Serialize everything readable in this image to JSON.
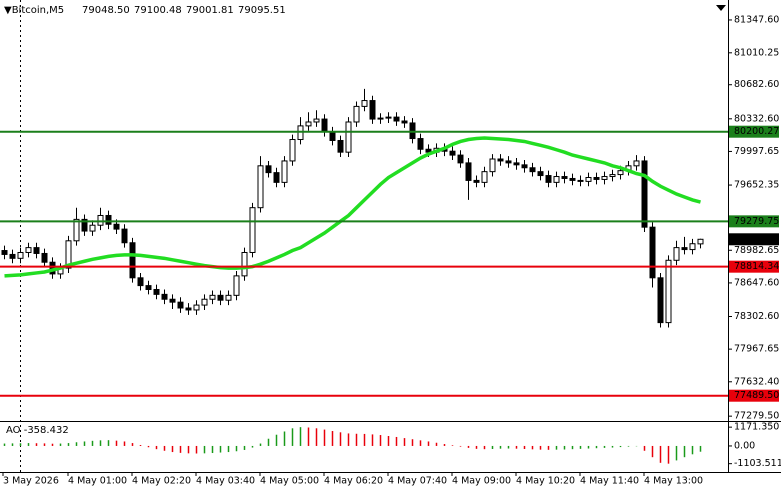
{
  "chart_data": {
    "type": "candlestick",
    "header": {
      "symbol": "▼Bitcoin,M5",
      "ohlc": [
        "79048.50",
        "79100.48",
        "79001.81",
        "79095.51"
      ]
    },
    "ylim": [
      77240,
      81532
    ],
    "yticks": [
      {
        "value": 81347.6,
        "label": "81347.60"
      },
      {
        "value": 81010.25,
        "label": "81010.25"
      },
      {
        "value": 80682.6,
        "label": "80682.60"
      },
      {
        "value": 80332.6,
        "label": "80332.60"
      },
      79997.65,
      79652.35,
      78982.65,
      {
        "value": 78647.6,
        "label": "78647.60"
      },
      {
        "value": 78302.6,
        "label": "78302.60"
      },
      77967.65,
      {
        "value": 77632.4,
        "label": "77632.40"
      },
      {
        "value": 77279.5,
        "label": "77279.50"
      }
    ],
    "xlabels": [
      "3 May 2026",
      "4 May 01:00",
      "4 May 02:20",
      "4 May 03:40",
      "4 May 05:00",
      "4 May 06:20",
      "4 May 07:40",
      "4 May 09:00",
      "4 May 10:20",
      "4 May 11:40",
      "4 May 13:00"
    ],
    "levels": [
      {
        "value": 80200.27,
        "color": "#1a7f1a"
      },
      {
        "value": 79279.75,
        "color": "#1a7f1a"
      },
      {
        "value": 78814.34,
        "color": "#e8000b"
      },
      {
        "value": 77489.5,
        "label": "77489.50",
        "color": "#e8000b"
      }
    ],
    "ma_color": "#22dd22",
    "candles": [
      [
        78980,
        79030,
        78890,
        78940
      ],
      [
        78940,
        78990,
        78850,
        78900
      ],
      [
        78900,
        79010,
        78850,
        78960
      ],
      [
        78960,
        79060,
        78910,
        79010
      ],
      [
        79010,
        79060,
        78900,
        78950
      ],
      [
        78950,
        79000,
        78810,
        78860
      ],
      [
        78860,
        78910,
        78690,
        78740
      ],
      [
        78740,
        78850,
        78690,
        78800
      ],
      [
        78800,
        79130,
        78750,
        79080
      ],
      [
        79080,
        79420,
        79030,
        79300
      ],
      [
        79300,
        79350,
        79130,
        79180
      ],
      [
        79180,
        79290,
        79130,
        79240
      ],
      [
        79240,
        79420,
        79190,
        79340
      ],
      [
        79340,
        79390,
        79200,
        79250
      ],
      [
        79250,
        79300,
        79150,
        79200
      ],
      [
        79200,
        79250,
        79010,
        79060
      ],
      [
        79060,
        79110,
        78650,
        78700
      ],
      [
        78700,
        78750,
        78570,
        78620
      ],
      [
        78620,
        78670,
        78530,
        78580
      ],
      [
        78580,
        78630,
        78480,
        78530
      ],
      [
        78530,
        78580,
        78430,
        78480
      ],
      [
        78480,
        78530,
        78380,
        78450
      ],
      [
        78450,
        78500,
        78340,
        78390
      ],
      [
        78390,
        78440,
        78320,
        78370
      ],
      [
        78370,
        78470,
        78320,
        78420
      ],
      [
        78420,
        78530,
        78370,
        78480
      ],
      [
        78480,
        78570,
        78430,
        78520
      ],
      [
        78520,
        78570,
        78420,
        78470
      ],
      [
        78470,
        78570,
        78420,
        78520
      ],
      [
        78520,
        78770,
        78470,
        78720
      ],
      [
        78720,
        79010,
        78670,
        78960
      ],
      [
        78960,
        79470,
        78910,
        79420
      ],
      [
        79420,
        79950,
        79370,
        79850
      ],
      [
        79850,
        79900,
        79730,
        79780
      ],
      [
        79780,
        79830,
        79630,
        79680
      ],
      [
        79680,
        79950,
        79630,
        79900
      ],
      [
        79900,
        80170,
        79850,
        80120
      ],
      [
        80120,
        80350,
        80070,
        80260
      ],
      [
        80260,
        80400,
        80210,
        80300
      ],
      [
        80300,
        80420,
        80250,
        80330
      ],
      [
        80330,
        80380,
        80150,
        80200
      ],
      [
        80200,
        80250,
        80060,
        80110
      ],
      [
        80110,
        80160,
        79940,
        79990
      ],
      [
        79990,
        80350,
        79940,
        80300
      ],
      [
        80300,
        80510,
        80250,
        80460
      ],
      [
        80460,
        80640,
        80410,
        80520
      ],
      [
        80520,
        80570,
        80280,
        80330
      ],
      [
        80330,
        80390,
        80280,
        80340
      ],
      [
        80340,
        80400,
        80290,
        80350
      ],
      [
        80350,
        80400,
        80260,
        80310
      ],
      [
        80310,
        80360,
        80240,
        80290
      ],
      [
        80290,
        80340,
        80080,
        80130
      ],
      [
        80130,
        80180,
        79970,
        80020
      ],
      [
        80020,
        80070,
        79940,
        79990
      ],
      [
        79990,
        80080,
        79940,
        80030
      ],
      [
        80030,
        80080,
        79950,
        80000
      ],
      [
        80000,
        80050,
        79910,
        79960
      ],
      [
        79960,
        80010,
        79830,
        79880
      ],
      [
        79880,
        79930,
        79500,
        79700
      ],
      [
        79700,
        79750,
        79630,
        79680
      ],
      [
        79680,
        79840,
        79630,
        79790
      ],
      [
        79790,
        79970,
        79740,
        79920
      ],
      [
        79920,
        79970,
        79850,
        79900
      ],
      [
        79900,
        79950,
        79830,
        79880
      ],
      [
        79880,
        79930,
        79810,
        79860
      ],
      [
        79860,
        79910,
        79780,
        79830
      ],
      [
        79830,
        79880,
        79740,
        79790
      ],
      [
        79790,
        79840,
        79700,
        79750
      ],
      [
        79750,
        79800,
        79630,
        79680
      ],
      [
        79680,
        79790,
        79630,
        79740
      ],
      [
        79740,
        79790,
        79670,
        79720
      ],
      [
        79720,
        79770,
        79650,
        79700
      ],
      [
        79700,
        79750,
        79640,
        79690
      ],
      [
        79690,
        79780,
        79640,
        79730
      ],
      [
        79730,
        79780,
        79660,
        79710
      ],
      [
        79710,
        79790,
        79660,
        79740
      ],
      [
        79740,
        79810,
        79690,
        79760
      ],
      [
        79760,
        79850,
        79710,
        79800
      ],
      [
        79800,
        79900,
        79750,
        79850
      ],
      [
        79850,
        79960,
        79800,
        79900
      ],
      [
        79900,
        79950,
        79170,
        79220
      ],
      [
        79220,
        79270,
        78600,
        78700
      ],
      [
        78700,
        78750,
        78190,
        78240
      ],
      [
        78240,
        78930,
        78190,
        78880
      ],
      [
        78880,
        79080,
        78830,
        79010
      ],
      [
        79010,
        79120,
        78940,
        78990
      ],
      [
        78990,
        79100,
        78940,
        79050
      ],
      [
        79048.5,
        79100.48,
        79001.81,
        79095.51
      ]
    ],
    "ma": [
      78720,
      78725,
      78730,
      78740,
      78750,
      78760,
      78780,
      78800,
      78830,
      78850,
      78870,
      78890,
      78905,
      78920,
      78930,
      78935,
      78935,
      78930,
      78920,
      78910,
      78900,
      78885,
      78870,
      78855,
      78840,
      78825,
      78815,
      78805,
      78800,
      78800,
      78805,
      78815,
      78840,
      78870,
      78905,
      78940,
      78980,
      79010,
      79060,
      79110,
      79160,
      79220,
      79280,
      79340,
      79420,
      79500,
      79580,
      79660,
      79730,
      79780,
      79830,
      79880,
      79930,
      79970,
      80000,
      80030,
      80070,
      80100,
      80120,
      80130,
      80135,
      80130,
      80125,
      80120,
      80110,
      80100,
      80080,
      80060,
      80040,
      80015,
      79990,
      79960,
      79940,
      79920,
      79900,
      79880,
      79850,
      79830,
      79800,
      79770,
      79750,
      79690,
      79640,
      79600,
      79560,
      79530,
      79500,
      79478
    ],
    "ao": {
      "label": "AO -358.432",
      "up_color": "#1a9a1a",
      "down_color": "#e8000b",
      "ylim": [
        -1560,
        1430
      ],
      "yticks": [
        {
          "value": 1171.35,
          "label": "1171.350"
        },
        {
          "value": 0,
          "label": "0.00"
        },
        -1103.511
      ],
      "values": [
        150,
        160,
        170,
        180,
        170,
        160,
        140,
        150,
        180,
        230,
        280,
        320,
        350,
        360,
        330,
        280,
        180,
        60,
        -80,
        -200,
        -300,
        -380,
        -430,
        -460,
        -470,
        -460,
        -440,
        -410,
        -380,
        -330,
        -250,
        -100,
        150,
        450,
        700,
        900,
        1100,
        1171,
        1150,
        1100,
        1020,
        930,
        850,
        780,
        760,
        750,
        720,
        680,
        620,
        560,
        490,
        420,
        350,
        280,
        200,
        120,
        40,
        -40,
        -120,
        -180,
        -200,
        -190,
        -170,
        -160,
        -170,
        -190,
        -210,
        -230,
        -240,
        -230,
        -220,
        -200,
        -180,
        -160,
        -140,
        -120,
        -100,
        -70,
        -40,
        -20,
        -300,
        -700,
        -1050,
        -1103.511,
        -900,
        -700,
        -520,
        -358.432
      ]
    }
  }
}
